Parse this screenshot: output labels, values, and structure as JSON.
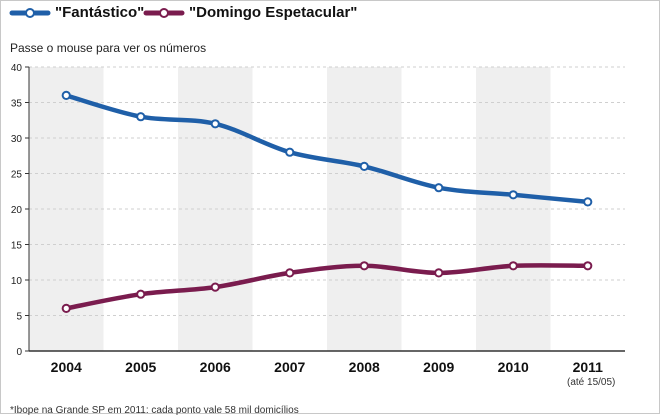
{
  "legend": {
    "fantastico_label": "\"Fantástico\"",
    "domingo_label": "\"Domingo Espetacular\""
  },
  "hint": "Passe o mouse para ver os números",
  "note": "(até 15/05)",
  "footnote": "*Ibope na Grande SP em 2011: cada ponto vale 58 mil domicílios",
  "colors": {
    "fantastico": "#1f5fa8",
    "domingo": "#7a1c4e",
    "band": "#efefef",
    "grid": "#cfcfcf",
    "axis": "#333333"
  },
  "chart_data": {
    "type": "line",
    "categories": [
      "2004",
      "2005",
      "2006",
      "2007",
      "2008",
      "2009",
      "2010",
      "2011"
    ],
    "series": [
      {
        "name": "\"Fantástico\"",
        "values": [
          36,
          33,
          32,
          28,
          26,
          23,
          22,
          21
        ]
      },
      {
        "name": "\"Domingo Espetacular\"",
        "values": [
          6,
          8,
          9,
          11,
          12,
          11,
          12,
          12
        ]
      }
    ],
    "ylim": [
      0,
      40
    ],
    "yticks": [
      "0",
      "5",
      "10",
      "15",
      "20",
      "25",
      "30",
      "35",
      "40"
    ],
    "grid": true,
    "legend_position": "top-left"
  }
}
